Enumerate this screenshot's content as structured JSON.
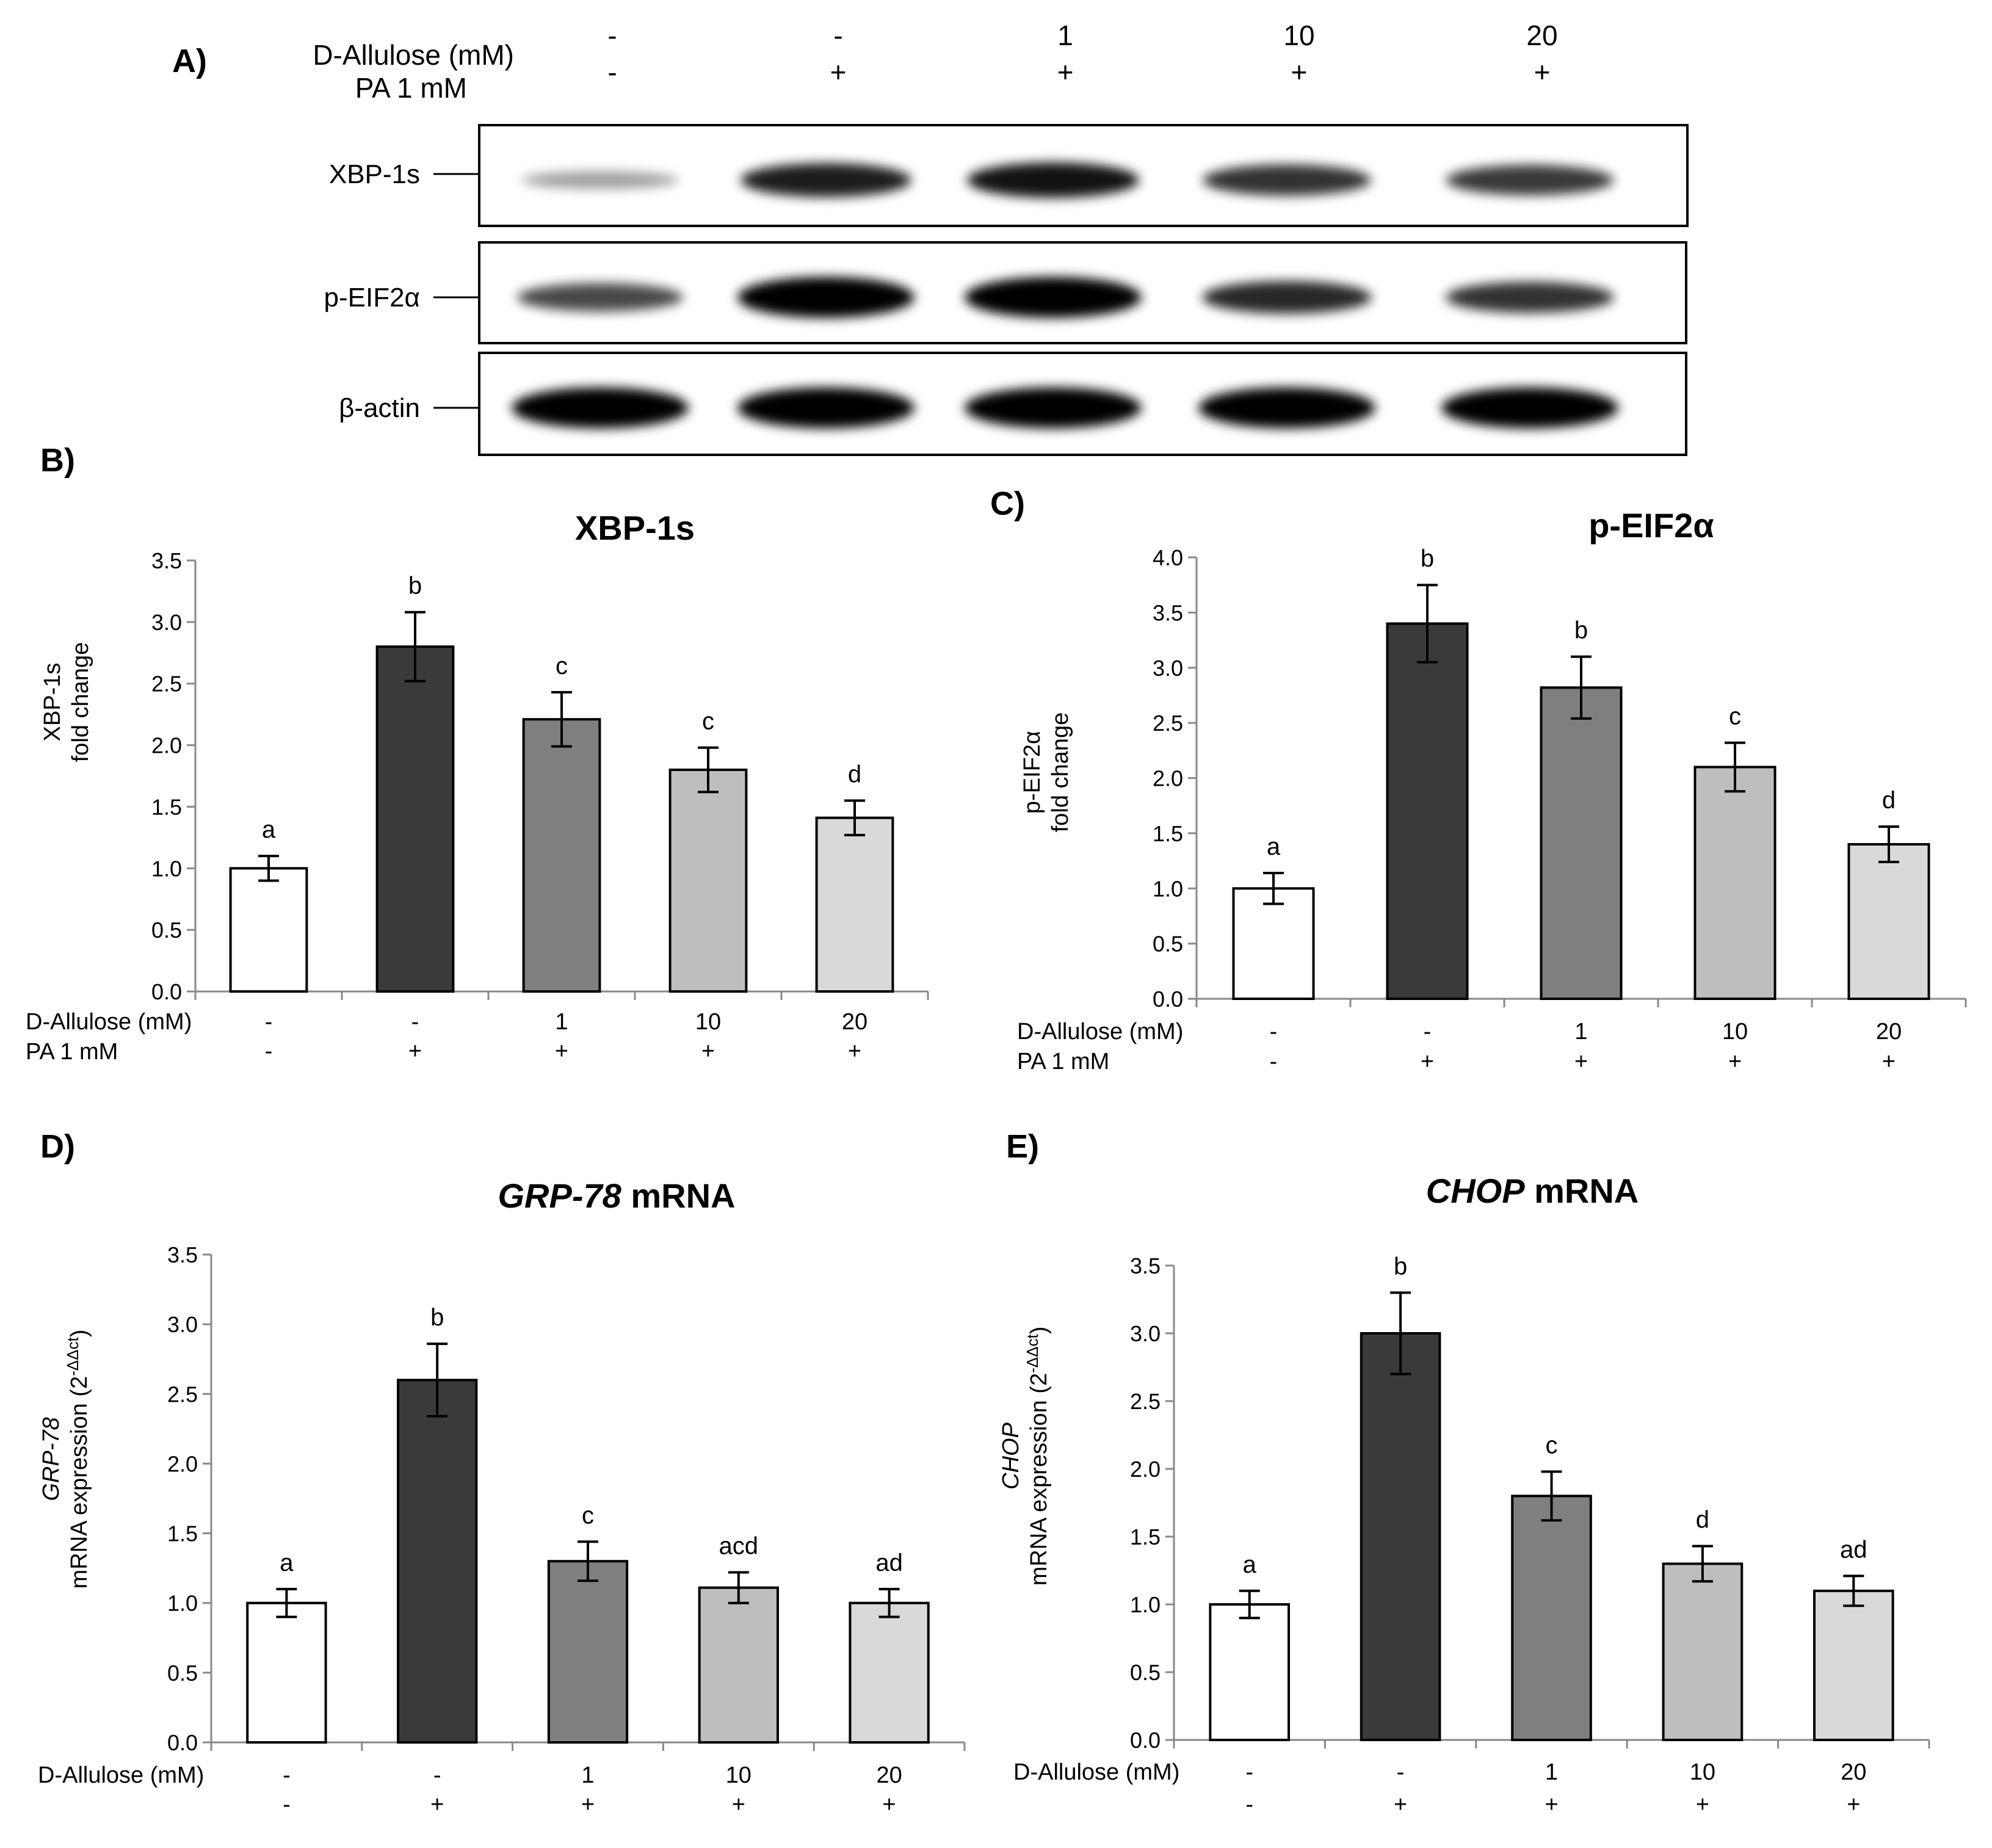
{
  "panel_labels": [
    "A)",
    "B)",
    "C)",
    "D)",
    "E)"
  ],
  "blot": {
    "conditions": {
      "row1_label": "D-Allulose (mM)",
      "row2_label": "PA 1 mM",
      "row1": [
        "-",
        "-",
        "1",
        "10",
        "20"
      ],
      "row2": [
        "-",
        "+",
        "+",
        "+",
        "+"
      ]
    },
    "bands": [
      {
        "label": "XBP-1s",
        "intensities": [
          0.15,
          0.75,
          0.8,
          0.65,
          0.62
        ]
      },
      {
        "label": "p-EIF2α",
        "intensities": [
          0.55,
          1.0,
          1.0,
          0.7,
          0.65
        ]
      },
      {
        "label": "β-actin",
        "intensities": [
          1.0,
          1.0,
          1.0,
          1.0,
          1.0
        ]
      }
    ]
  },
  "chart_data": [
    {
      "panel": "B)",
      "type": "bar",
      "title": "XBP-1s",
      "ylabel_lines": [
        "XBP-1s",
        "fold change"
      ],
      "ylim": [
        0,
        3.5
      ],
      "yticks": [
        "0.0",
        "0.5",
        "1.0",
        "1.5",
        "2.0",
        "2.5",
        "3.0",
        "3.5"
      ],
      "values": [
        1.0,
        2.8,
        2.21,
        1.8,
        1.41
      ],
      "errors": [
        0.1,
        0.28,
        0.22,
        0.18,
        0.14
      ],
      "significance": [
        "a",
        "b",
        "c",
        "c",
        "d"
      ],
      "colors": [
        "#ffffff",
        "#3a3a3a",
        "#7f7f7f",
        "#bebebe",
        "#d9d9d9"
      ],
      "condition_labels": [
        "D-Allulose (mM)",
        "PA 1 mM"
      ],
      "d_allulose": [
        "-",
        "-",
        "1",
        "10",
        "20"
      ],
      "pa": [
        "-",
        "+",
        "+",
        "+",
        "+"
      ]
    },
    {
      "panel": "C)",
      "type": "bar",
      "title": "p-EIF2α",
      "ylabel_lines": [
        "p-EIF2α",
        "fold change"
      ],
      "ylim": [
        0,
        4.0
      ],
      "yticks": [
        "0.0",
        "0.5",
        "1.0",
        "1.5",
        "2.0",
        "2.5",
        "3.0",
        "3.5",
        "4.0"
      ],
      "values": [
        1.0,
        3.4,
        2.82,
        2.1,
        1.4
      ],
      "errors": [
        0.14,
        0.35,
        0.28,
        0.22,
        0.16
      ],
      "significance": [
        "a",
        "b",
        "b",
        "c",
        "d"
      ],
      "colors": [
        "#ffffff",
        "#3a3a3a",
        "#7f7f7f",
        "#bebebe",
        "#d9d9d9"
      ],
      "condition_labels": [
        "D-Allulose (mM)",
        "PA 1 mM"
      ],
      "d_allulose": [
        "-",
        "-",
        "1",
        "10",
        "20"
      ],
      "pa": [
        "-",
        "+",
        "+",
        "+",
        "+"
      ]
    },
    {
      "panel": "D)",
      "type": "bar",
      "title_italic": "GRP-78",
      "title_rest": " mRNA",
      "ylabel_italic": "GRP-78",
      "ylabel_line2": "mRNA expression (2",
      "ylabel_sup": "-ΔΔct",
      "ylabel_close": ")",
      "ylim": [
        0,
        3.5
      ],
      "yticks": [
        "0.0",
        "0.5",
        "1.0",
        "1.5",
        "2.0",
        "2.5",
        "3.0",
        "3.5"
      ],
      "values": [
        1.0,
        2.6,
        1.3,
        1.11,
        1.0
      ],
      "errors": [
        0.1,
        0.26,
        0.14,
        0.11,
        0.1
      ],
      "significance": [
        "a",
        "b",
        "c",
        "acd",
        "ad"
      ],
      "colors": [
        "#ffffff",
        "#3a3a3a",
        "#7f7f7f",
        "#bebebe",
        "#d9d9d9"
      ],
      "condition_labels": [
        "D-Allulose (mM)",
        ""
      ],
      "d_allulose": [
        "-",
        "-",
        "1",
        "10",
        "20"
      ],
      "pa": [
        "-",
        "+",
        "+",
        "+",
        "+"
      ]
    },
    {
      "panel": "E)",
      "type": "bar",
      "title_italic": "CHOP",
      "title_rest": " mRNA",
      "ylabel_italic": "CHOP",
      "ylabel_line2": "mRNA expression (2",
      "ylabel_sup": "-ΔΔct",
      "ylabel_close": ")",
      "ylim": [
        0,
        3.5
      ],
      "yticks": [
        "0.0",
        "0.5",
        "1.0",
        "1.5",
        "2.0",
        "2.5",
        "3.0",
        "3.5"
      ],
      "values": [
        1.0,
        3.0,
        1.8,
        1.3,
        1.1
      ],
      "errors": [
        0.1,
        0.3,
        0.18,
        0.13,
        0.11
      ],
      "significance": [
        "a",
        "b",
        "c",
        "d",
        "ad"
      ],
      "colors": [
        "#ffffff",
        "#3a3a3a",
        "#7f7f7f",
        "#bebebe",
        "#d9d9d9"
      ],
      "condition_labels": [
        "D-Allulose (mM)",
        ""
      ],
      "d_allulose": [
        "-",
        "-",
        "1",
        "10",
        "20"
      ],
      "pa": [
        "-",
        "+",
        "+",
        "+",
        "+"
      ]
    }
  ]
}
